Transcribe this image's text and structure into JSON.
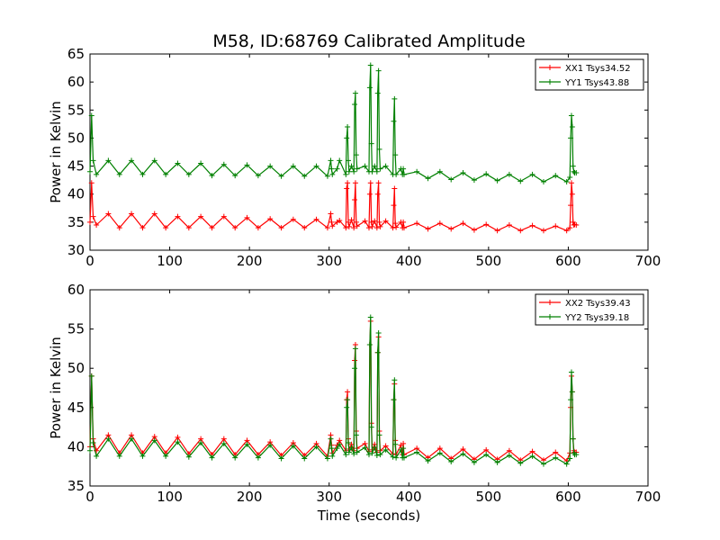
{
  "chart_data": [
    {
      "type": "line",
      "title": "M58, ID:68769 Calibrated Amplitude",
      "xlabel": "",
      "ylabel": "Power in Kelvin",
      "xlim": [
        0,
        700
      ],
      "ylim": [
        30,
        65
      ],
      "xticks": [
        0,
        100,
        200,
        300,
        400,
        500,
        600,
        700
      ],
      "yticks": [
        30,
        35,
        40,
        45,
        50,
        55,
        60,
        65
      ],
      "legend_position": "upper-right",
      "series": [
        {
          "name": "XX1 Tsys34.52",
          "color": "#ff0000",
          "x": [
            0,
            2,
            4,
            8,
            23,
            37,
            52,
            66,
            81,
            95,
            110,
            124,
            139,
            153,
            168,
            182,
            197,
            211,
            226,
            240,
            255,
            269,
            284,
            298,
            302,
            303,
            304,
            310,
            313,
            321,
            322,
            323,
            324,
            325,
            328,
            331,
            332,
            333,
            334,
            335,
            345,
            350,
            351,
            352,
            353,
            354,
            357,
            360,
            361,
            362,
            363,
            364,
            371,
            380,
            381,
            382,
            383,
            384,
            390,
            392,
            393,
            394,
            410,
            424,
            439,
            453,
            468,
            482,
            497,
            511,
            526,
            540,
            555,
            569,
            584,
            598,
            602,
            603,
            604,
            605,
            606,
            607,
            608,
            610
          ],
          "values": [
            35,
            42,
            36,
            34.5,
            36.5,
            34,
            36.5,
            34,
            36.5,
            34,
            36,
            34,
            36,
            34,
            36,
            34,
            35.8,
            34,
            35.6,
            34,
            35.5,
            34,
            35.5,
            34,
            36.5,
            35,
            34.3,
            35,
            35.3,
            34,
            41,
            42,
            35,
            34.2,
            35.4,
            34,
            39,
            42,
            35,
            34.3,
            35.2,
            34,
            40,
            42,
            35,
            34.2,
            35.2,
            34,
            40,
            42,
            35,
            34.2,
            35.2,
            34,
            38,
            41,
            34.8,
            34.1,
            35,
            34,
            35,
            34,
            34.8,
            33.8,
            34.8,
            33.8,
            34.8,
            33.6,
            34.6,
            33.5,
            34.5,
            33.5,
            34.4,
            33.5,
            34.3,
            33.5,
            34,
            38,
            42,
            40,
            35,
            34.5,
            34.6,
            34.5
          ]
        },
        {
          "name": "YY1 Tsys43.88",
          "color": "#008000",
          "x": [
            0,
            2,
            4,
            8,
            23,
            37,
            52,
            66,
            81,
            95,
            110,
            124,
            139,
            153,
            168,
            182,
            197,
            211,
            226,
            240,
            255,
            269,
            284,
            298,
            302,
            303,
            304,
            310,
            313,
            321,
            322,
            323,
            324,
            325,
            328,
            331,
            332,
            333,
            334,
            335,
            345,
            350,
            351,
            352,
            353,
            354,
            357,
            360,
            361,
            362,
            363,
            364,
            371,
            380,
            381,
            382,
            383,
            384,
            390,
            392,
            393,
            394,
            410,
            424,
            439,
            453,
            468,
            482,
            497,
            511,
            526,
            540,
            555,
            569,
            584,
            598,
            602,
            603,
            604,
            605,
            606,
            607,
            608,
            610
          ],
          "values": [
            44,
            54,
            46,
            43.5,
            46,
            43.5,
            46,
            43.5,
            46,
            43.5,
            45.5,
            43.5,
            45.5,
            43.3,
            45.3,
            43.3,
            45.2,
            43.3,
            45,
            43.2,
            45,
            43.2,
            45,
            43.2,
            46,
            44.5,
            43.5,
            44.5,
            46,
            43.5,
            50,
            52,
            46,
            44,
            45,
            44,
            56,
            58,
            47,
            44.5,
            45,
            44,
            59,
            63,
            49,
            44,
            45,
            44,
            58,
            62,
            48,
            44.5,
            45,
            43.5,
            53,
            57,
            47,
            43.5,
            44.5,
            43.5,
            44.5,
            43.5,
            44,
            42.8,
            44,
            42.6,
            43.8,
            42.5,
            43.6,
            42.4,
            43.5,
            42.3,
            43.5,
            42.2,
            43.3,
            42.2,
            43,
            50,
            54,
            52,
            45,
            44,
            43.8,
            43.8
          ]
        }
      ]
    },
    {
      "type": "line",
      "title": "",
      "xlabel": "Time (seconds)",
      "ylabel": "Power in Kelvin",
      "xlim": [
        0,
        700
      ],
      "ylim": [
        35,
        60
      ],
      "xticks": [
        0,
        100,
        200,
        300,
        400,
        500,
        600,
        700
      ],
      "yticks": [
        35,
        40,
        45,
        50,
        55,
        60
      ],
      "legend_position": "upper-right",
      "series": [
        {
          "name": "XX2 Tsys39.43",
          "color": "#ff0000",
          "x": [
            0,
            2,
            4,
            8,
            23,
            37,
            52,
            66,
            81,
            95,
            110,
            124,
            139,
            153,
            168,
            182,
            197,
            211,
            226,
            240,
            255,
            269,
            284,
            298,
            302,
            303,
            304,
            310,
            313,
            321,
            322,
            323,
            324,
            325,
            328,
            331,
            332,
            333,
            334,
            335,
            345,
            350,
            351,
            352,
            353,
            354,
            357,
            360,
            361,
            362,
            363,
            364,
            371,
            380,
            381,
            382,
            383,
            384,
            390,
            392,
            393,
            394,
            410,
            424,
            439,
            453,
            468,
            482,
            497,
            511,
            526,
            540,
            555,
            569,
            584,
            598,
            602,
            603,
            604,
            605,
            606,
            607,
            608,
            610
          ],
          "values": [
            40,
            49,
            41,
            39.5,
            41.5,
            39.2,
            41.5,
            39.2,
            41.3,
            39.2,
            41.2,
            39.1,
            41,
            39,
            41,
            39,
            40.8,
            39,
            40.6,
            38.9,
            40.5,
            38.9,
            40.4,
            38.8,
            41.5,
            40.2,
            39.2,
            40.2,
            40.8,
            39.5,
            46,
            47,
            41,
            39.7,
            40.3,
            39.5,
            51,
            53,
            42,
            39.8,
            40.4,
            39.4,
            53,
            56,
            43,
            39.6,
            40.3,
            39.3,
            52,
            54,
            42,
            39.5,
            40.1,
            39.1,
            46,
            48,
            40.8,
            39,
            40.2,
            39,
            40.4,
            39,
            39.8,
            38.6,
            39.8,
            38.5,
            39.7,
            38.4,
            39.6,
            38.4,
            39.5,
            38.3,
            39.4,
            38.3,
            39.3,
            38.2,
            39.2,
            45,
            49,
            47,
            41,
            39.5,
            39.3,
            39.3
          ]
        },
        {
          "name": "YY2 Tsys39.18",
          "color": "#008000",
          "x": [
            0,
            2,
            4,
            8,
            23,
            37,
            52,
            66,
            81,
            95,
            110,
            124,
            139,
            153,
            168,
            182,
            197,
            211,
            226,
            240,
            255,
            269,
            284,
            298,
            302,
            303,
            304,
            310,
            313,
            321,
            322,
            323,
            324,
            325,
            328,
            331,
            332,
            333,
            334,
            335,
            345,
            350,
            351,
            352,
            353,
            354,
            357,
            360,
            361,
            362,
            363,
            364,
            371,
            380,
            381,
            382,
            383,
            384,
            390,
            392,
            393,
            394,
            410,
            424,
            439,
            453,
            468,
            482,
            497,
            511,
            526,
            540,
            555,
            569,
            584,
            598,
            602,
            603,
            604,
            605,
            606,
            607,
            608,
            610
          ],
          "values": [
            39.5,
            49,
            40.5,
            38.8,
            41,
            38.8,
            41,
            38.8,
            40.8,
            38.8,
            40.6,
            38.7,
            40.5,
            38.6,
            40.4,
            38.6,
            40.3,
            38.6,
            40.2,
            38.5,
            40.1,
            38.5,
            40,
            38.5,
            41,
            39.8,
            38.8,
            39.8,
            40.3,
            39,
            45,
            46,
            40.5,
            39.3,
            39.9,
            39.1,
            50,
            52.5,
            41.5,
            39.3,
            39.9,
            39,
            53,
            56.5,
            42.5,
            39.2,
            39.9,
            38.9,
            52,
            54.5,
            41.5,
            39,
            39.6,
            38.7,
            46,
            48.5,
            40.3,
            38.6,
            39.6,
            38.6,
            39.8,
            38.6,
            39.3,
            38.2,
            39.2,
            38.1,
            39.1,
            38,
            39,
            38,
            38.9,
            37.9,
            38.8,
            37.8,
            38.6,
            37.8,
            38.5,
            46,
            49.5,
            47,
            41,
            39.2,
            39,
            39
          ]
        }
      ]
    }
  ]
}
